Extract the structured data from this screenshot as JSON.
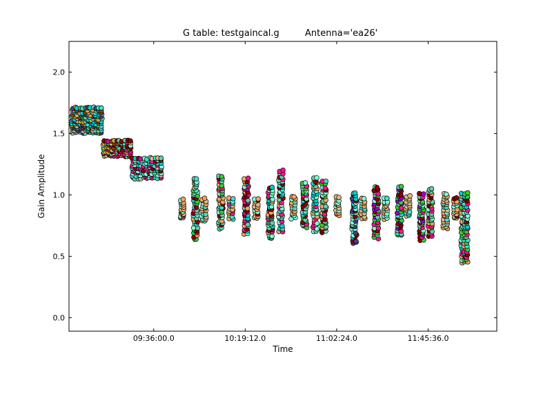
{
  "chart_data": {
    "type": "scatter",
    "title": "G table: testgaincal.g",
    "subtitle": "Antenna='ea26'",
    "xlabel": "Time",
    "ylabel": "Gain Amplitude",
    "x_unit": "seconds of day",
    "xlim": [
      32160,
      44280
    ],
    "ylim": [
      -0.11,
      2.25
    ],
    "grid": false,
    "legend": "none",
    "xticks": [
      {
        "value": 34560,
        "label": "09:36:00.0"
      },
      {
        "value": 37152,
        "label": "10:19:12.0"
      },
      {
        "value": 39744,
        "label": "11:02:24.0"
      },
      {
        "value": 42336,
        "label": "11:45:36.0"
      }
    ],
    "yticks": [
      {
        "value": 0.0,
        "label": "0.0"
      },
      {
        "value": 0.5,
        "label": "0.5"
      },
      {
        "value": 1.0,
        "label": "1.0"
      },
      {
        "value": 1.5,
        "label": "1.5"
      },
      {
        "value": 2.0,
        "label": "2.0"
      }
    ],
    "colors": [
      "#8b4513",
      "#40e0d0",
      "#ff1493",
      "#8b0000",
      "#7fffd4",
      "#f4a460",
      "#66cdaa",
      "#00ced1",
      "#32cd32",
      "#9400d3",
      "#deb887",
      "#2e8b57",
      "#c71585",
      "#00fa9a",
      "#483d8b",
      "#daa520"
    ],
    "clusters": [
      {
        "x": 32680,
        "x_width": 900,
        "y_min": 1.5,
        "y_max": 1.72,
        "rows": 12,
        "cols": 12,
        "colors": [
          0,
          15,
          6,
          11,
          14,
          10,
          1,
          7
        ]
      },
      {
        "x": 33530,
        "x_width": 820,
        "y_min": 1.31,
        "y_max": 1.45,
        "rows": 8,
        "cols": 11,
        "colors": [
          2,
          12,
          15,
          6,
          10,
          0,
          4,
          3
        ]
      },
      {
        "x": 34380,
        "x_width": 880,
        "y_min": 1.13,
        "y_max": 1.31,
        "rows": 9,
        "cols": 11,
        "colors": [
          4,
          2,
          12,
          6,
          1,
          3,
          10,
          7
        ]
      },
      {
        "x": 35380,
        "x_width": 120,
        "y_min": 0.8,
        "y_max": 0.97,
        "rows": 9,
        "cols": 2,
        "colors": [
          5,
          0,
          10,
          4
        ]
      },
      {
        "x": 35760,
        "x_width": 160,
        "y_min": 0.63,
        "y_max": 1.15,
        "rows": 22,
        "cols": 2,
        "colors": [
          8,
          3,
          2,
          1,
          4,
          5,
          7,
          6
        ]
      },
      {
        "x": 36000,
        "x_width": 170,
        "y_min": 0.78,
        "y_max": 0.98,
        "rows": 10,
        "cols": 2,
        "colors": [
          5,
          4,
          1,
          10,
          6
        ]
      },
      {
        "x": 36480,
        "x_width": 160,
        "y_min": 0.72,
        "y_max": 1.16,
        "rows": 20,
        "cols": 2,
        "colors": [
          6,
          3,
          2,
          4,
          8,
          1,
          5
        ]
      },
      {
        "x": 36760,
        "x_width": 160,
        "y_min": 0.8,
        "y_max": 0.98,
        "rows": 9,
        "cols": 2,
        "colors": [
          5,
          4,
          10,
          1,
          2
        ]
      },
      {
        "x": 37200,
        "x_width": 160,
        "y_min": 0.67,
        "y_max": 1.15,
        "rows": 22,
        "cols": 2,
        "colors": [
          4,
          3,
          2,
          7,
          6,
          5,
          12
        ]
      },
      {
        "x": 37480,
        "x_width": 150,
        "y_min": 0.8,
        "y_max": 0.98,
        "rows": 9,
        "cols": 2,
        "colors": [
          5,
          4,
          3,
          10
        ]
      },
      {
        "x": 37880,
        "x_width": 160,
        "y_min": 0.64,
        "y_max": 1.07,
        "rows": 20,
        "cols": 2,
        "colors": [
          3,
          4,
          2,
          7,
          6,
          11,
          5
        ]
      },
      {
        "x": 38180,
        "x_width": 160,
        "y_min": 0.7,
        "y_max": 1.21,
        "rows": 22,
        "cols": 2,
        "colors": [
          4,
          3,
          5,
          2,
          1,
          6,
          7
        ]
      },
      {
        "x": 38530,
        "x_width": 160,
        "y_min": 0.8,
        "y_max": 1.0,
        "rows": 9,
        "cols": 2,
        "colors": [
          5,
          4,
          6,
          10
        ]
      },
      {
        "x": 38850,
        "x_width": 160,
        "y_min": 0.73,
        "y_max": 1.11,
        "rows": 18,
        "cols": 2,
        "colors": [
          6,
          2,
          3,
          8,
          4,
          1
        ]
      },
      {
        "x": 39150,
        "x_width": 160,
        "y_min": 0.7,
        "y_max": 1.15,
        "rows": 20,
        "cols": 2,
        "colors": [
          4,
          3,
          2,
          7,
          5,
          6
        ]
      },
      {
        "x": 39400,
        "x_width": 160,
        "y_min": 0.69,
        "y_max": 1.12,
        "rows": 20,
        "cols": 2,
        "colors": [
          8,
          3,
          2,
          4,
          6,
          5
        ]
      },
      {
        "x": 39780,
        "x_width": 120,
        "y_min": 0.83,
        "y_max": 0.99,
        "rows": 8,
        "cols": 2,
        "colors": [
          5,
          4,
          10
        ]
      },
      {
        "x": 40260,
        "x_width": 170,
        "y_min": 0.6,
        "y_max": 1.03,
        "rows": 20,
        "cols": 2,
        "colors": [
          4,
          2,
          3,
          7,
          6,
          14
        ]
      },
      {
        "x": 40500,
        "x_width": 150,
        "y_min": 0.8,
        "y_max": 0.98,
        "rows": 9,
        "cols": 2,
        "colors": [
          5,
          4,
          1,
          10
        ]
      },
      {
        "x": 40880,
        "x_width": 160,
        "y_min": 0.64,
        "y_max": 1.07,
        "rows": 20,
        "cols": 2,
        "colors": [
          8,
          3,
          9,
          2,
          4,
          6
        ]
      },
      {
        "x": 41140,
        "x_width": 150,
        "y_min": 0.8,
        "y_max": 0.98,
        "rows": 9,
        "cols": 2,
        "colors": [
          5,
          4,
          1,
          10
        ]
      },
      {
        "x": 41540,
        "x_width": 160,
        "y_min": 0.66,
        "y_max": 1.08,
        "rows": 20,
        "cols": 2,
        "colors": [
          8,
          3,
          2,
          9,
          6,
          1
        ]
      },
      {
        "x": 41780,
        "x_width": 160,
        "y_min": 0.82,
        "y_max": 1.0,
        "rows": 9,
        "cols": 2,
        "colors": [
          5,
          4,
          10,
          1
        ]
      },
      {
        "x": 42160,
        "x_width": 160,
        "y_min": 0.63,
        "y_max": 1.02,
        "rows": 20,
        "cols": 2,
        "colors": [
          3,
          2,
          8,
          4,
          6,
          9
        ]
      },
      {
        "x": 42410,
        "x_width": 160,
        "y_min": 0.66,
        "y_max": 1.06,
        "rows": 20,
        "cols": 2,
        "colors": [
          3,
          6,
          2,
          8,
          4,
          5
        ]
      },
      {
        "x": 42840,
        "x_width": 160,
        "y_min": 0.72,
        "y_max": 1.02,
        "rows": 16,
        "cols": 2,
        "colors": [
          5,
          4,
          6,
          1,
          10
        ]
      },
      {
        "x": 43130,
        "x_width": 150,
        "y_min": 0.8,
        "y_max": 0.98,
        "rows": 9,
        "cols": 2,
        "colors": [
          5,
          4,
          3,
          10
        ]
      },
      {
        "x": 43380,
        "x_width": 220,
        "y_min": 0.44,
        "y_max": 1.03,
        "rows": 26,
        "cols": 3,
        "colors": [
          3,
          7,
          8,
          4,
          2,
          6,
          5,
          1
        ]
      }
    ]
  }
}
